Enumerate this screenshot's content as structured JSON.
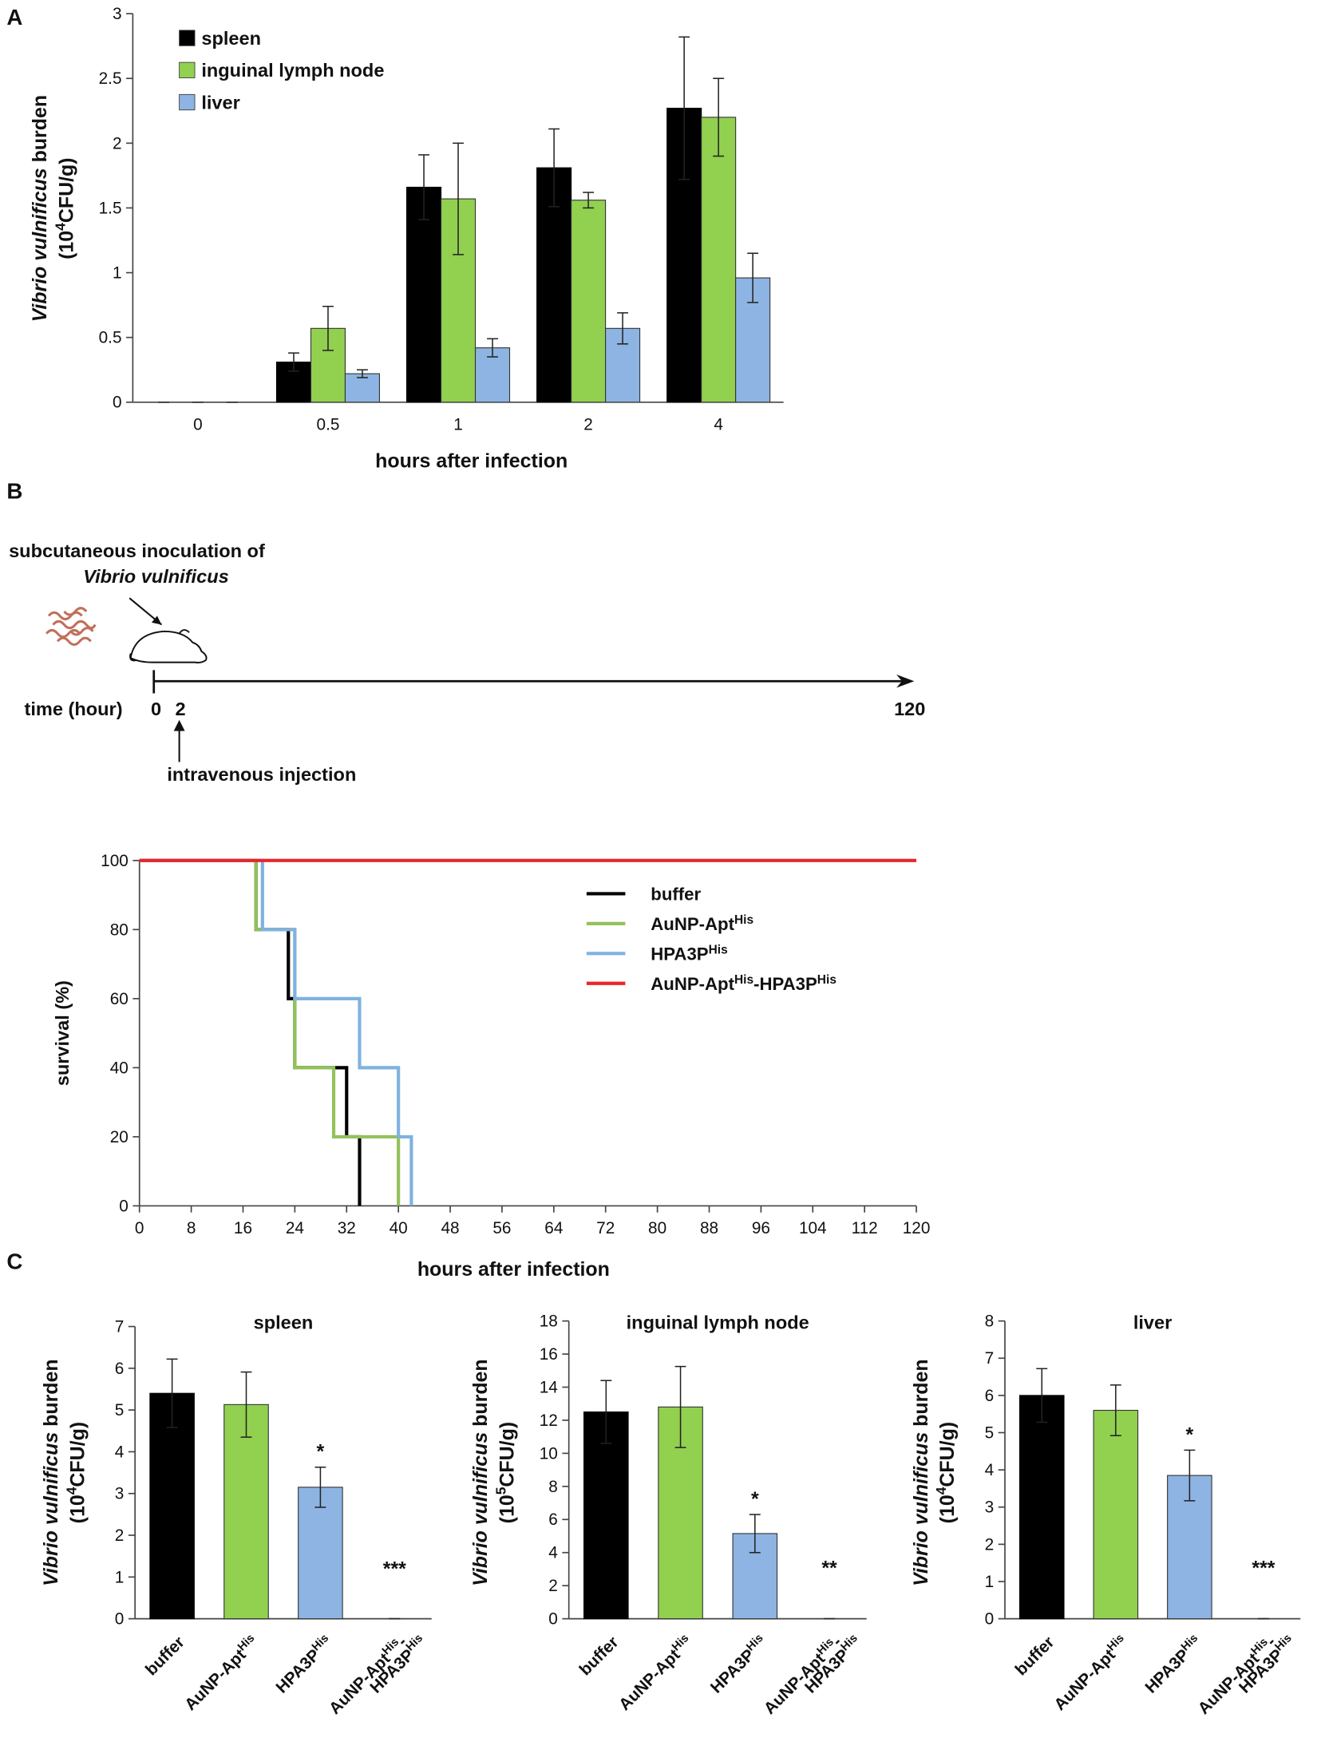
{
  "panels": [
    "A",
    "B",
    "C"
  ],
  "timeline": {
    "inoculation": "subcutaneous inoculation of",
    "species": "Vibrio vulnificus",
    "axis_label": "time (hour)",
    "start": "0",
    "injection_time": "2",
    "end": "120",
    "injection": "intravenous injection"
  },
  "chart_data": [
    {
      "type": "bar",
      "categories": [
        "0",
        "0.5",
        "1",
        "2",
        "4"
      ],
      "series": [
        {
          "name": [
            "spleen"
          ],
          "color": "#000000",
          "values": [
            0,
            0.31,
            1.66,
            1.81,
            2.27
          ],
          "errors": [
            0,
            0.07,
            0.25,
            0.3,
            0.55
          ]
        },
        {
          "name": [
            "inguinal lymph node"
          ],
          "color": "#92d050",
          "values": [
            0,
            0.57,
            1.57,
            1.56,
            2.2
          ],
          "errors": [
            0,
            0.17,
            0.43,
            0.06,
            0.3
          ]
        },
        {
          "name": [
            "liver"
          ],
          "color": "#8db4e2",
          "values": [
            0,
            0.22,
            0.42,
            0.57,
            0.96
          ],
          "errors": [
            0,
            0.03,
            0.07,
            0.12,
            0.19
          ]
        }
      ],
      "x_label": "hours after infection",
      "y_label": [
        "Vibrio vulnificus",
        " burden"
      ],
      "y_label_unit": [
        "(10",
        "4",
        "CFU/g)"
      ],
      "ylim": [
        0,
        3
      ],
      "yticks": [
        0,
        0.5,
        1,
        1.5,
        2,
        2.5,
        3
      ],
      "legend": "top-left"
    },
    {
      "type": "line",
      "series": [
        {
          "name": [
            "buffer"
          ],
          "color": "#000000",
          "x": [
            0,
            18,
            18,
            23,
            23,
            24,
            24,
            32,
            32,
            34,
            34
          ],
          "values": [
            100,
            100,
            80,
            80,
            60,
            60,
            40,
            40,
            20,
            20,
            0
          ]
        },
        {
          "name": [
            "AuNP-Apt",
            "His"
          ],
          "color": "#92c25a",
          "x": [
            0,
            18,
            18,
            24,
            24,
            30,
            30,
            40,
            40
          ],
          "values": [
            100,
            100,
            80,
            80,
            40,
            40,
            20,
            20,
            0
          ]
        },
        {
          "name": [
            "HPA3P",
            "His"
          ],
          "color": "#7fb2e0",
          "x": [
            0,
            19,
            19,
            24,
            24,
            34,
            34,
            40,
            40,
            42,
            42
          ],
          "values": [
            100,
            100,
            80,
            80,
            60,
            60,
            40,
            40,
            20,
            20,
            0
          ]
        },
        {
          "name": [
            "AuNP-Apt",
            "His",
            "-HPA3P",
            "His"
          ],
          "color": "#e8262a",
          "x": [
            0,
            120
          ],
          "values": [
            100,
            100
          ]
        }
      ],
      "x_label": "hours after infection",
      "y_label": "survival (%)",
      "xlim": [
        0,
        120
      ],
      "xticks": [
        0,
        8,
        16,
        24,
        32,
        40,
        48,
        56,
        64,
        72,
        80,
        88,
        96,
        104,
        112,
        120
      ],
      "ylim": [
        0,
        100
      ],
      "yticks": [
        0,
        20,
        40,
        60,
        80,
        100
      ],
      "legend": "top-right"
    },
    {
      "type": "bar",
      "title": "spleen",
      "categories": [
        [
          [
            "buffer"
          ]
        ],
        [
          [
            "AuNP-Apt",
            "His"
          ]
        ],
        [
          [
            "HPA3P",
            "His"
          ]
        ],
        [
          [
            "AuNP-Apt",
            "His",
            "-"
          ],
          [
            "HPA3P",
            "His"
          ]
        ]
      ],
      "values": [
        5.4,
        5.13,
        3.15,
        0
      ],
      "errors": [
        0.82,
        0.78,
        0.48,
        0
      ],
      "colors": [
        "#000000",
        "#92d050",
        "#8db4e2",
        "#8db4e2"
      ],
      "annotations": [
        {
          "index": 2,
          "text": "*"
        },
        {
          "index": 3,
          "text": "***"
        }
      ],
      "y_label": [
        "Vibrio vulnificus",
        " burden"
      ],
      "y_label_unit": [
        "(10",
        "4",
        "CFU/g)"
      ],
      "ylim": [
        0,
        7
      ],
      "yticks": [
        0,
        1,
        2,
        3,
        4,
        5,
        6,
        7
      ]
    },
    {
      "type": "bar",
      "title": "inguinal lymph node",
      "categories": [
        [
          [
            "buffer"
          ]
        ],
        [
          [
            "AuNP-Apt",
            "His"
          ]
        ],
        [
          [
            "HPA3P",
            "His"
          ]
        ],
        [
          [
            "AuNP-Apt",
            "His",
            "-"
          ],
          [
            "HPA3P",
            "His"
          ]
        ]
      ],
      "values": [
        12.5,
        12.8,
        5.15,
        0
      ],
      "errors": [
        1.9,
        2.45,
        1.15,
        0
      ],
      "colors": [
        "#000000",
        "#92d050",
        "#8db4e2",
        "#8db4e2"
      ],
      "annotations": [
        {
          "index": 2,
          "text": "*"
        },
        {
          "index": 3,
          "text": "**"
        }
      ],
      "y_label": [
        "Vibrio vulnificus",
        " burden"
      ],
      "y_label_unit": [
        "(10",
        "5",
        "CFU/g)"
      ],
      "ylim": [
        0,
        18
      ],
      "yticks": [
        0,
        2,
        4,
        6,
        8,
        10,
        12,
        14,
        16,
        18
      ]
    },
    {
      "type": "bar",
      "title": "liver",
      "categories": [
        [
          [
            "buffer"
          ]
        ],
        [
          [
            "AuNP-Apt",
            "His"
          ]
        ],
        [
          [
            "HPA3P",
            "His"
          ]
        ],
        [
          [
            "AuNP-Apt",
            "His",
            "-"
          ],
          [
            "HPA3P",
            "His"
          ]
        ]
      ],
      "values": [
        6.0,
        5.6,
        3.85,
        0
      ],
      "errors": [
        0.72,
        0.68,
        0.68,
        0
      ],
      "colors": [
        "#000000",
        "#92d050",
        "#8db4e2",
        "#8db4e2"
      ],
      "annotations": [
        {
          "index": 2,
          "text": "*"
        },
        {
          "index": 3,
          "text": "***"
        }
      ],
      "y_label": [
        "Vibrio vulnificus",
        " burden"
      ],
      "y_label_unit": [
        "(10",
        "4",
        "CFU/g)"
      ],
      "ylim": [
        0,
        8
      ],
      "yticks": [
        0,
        1,
        2,
        3,
        4,
        5,
        6,
        7,
        8
      ]
    }
  ]
}
